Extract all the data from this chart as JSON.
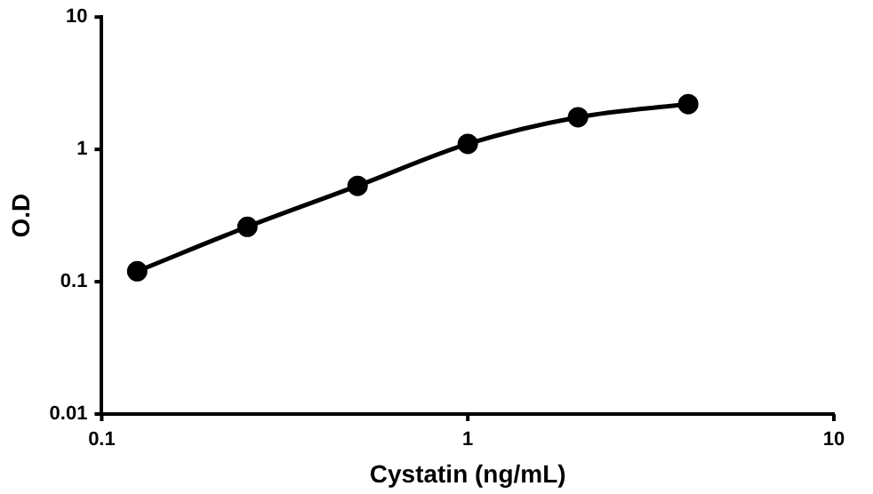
{
  "chart_data": {
    "type": "line",
    "xlabel": "Cystatin (ng/mL)",
    "ylabel": "O.D",
    "x": [
      0.125,
      0.25,
      0.5,
      1,
      2,
      4
    ],
    "series": [
      {
        "color": "#000000",
        "values": [
          0.12,
          0.26,
          0.53,
          1.1,
          1.75,
          2.2
        ]
      }
    ],
    "log": "xy",
    "xlim": [
      0.1,
      10
    ],
    "xticks": [
      0.1,
      1,
      10
    ],
    "ylim": [
      0.01,
      10
    ],
    "yticks": [
      0.01,
      0.1,
      1,
      10
    ],
    "marker": "circle",
    "line_style": "solid",
    "grid": false,
    "legend": false
  }
}
